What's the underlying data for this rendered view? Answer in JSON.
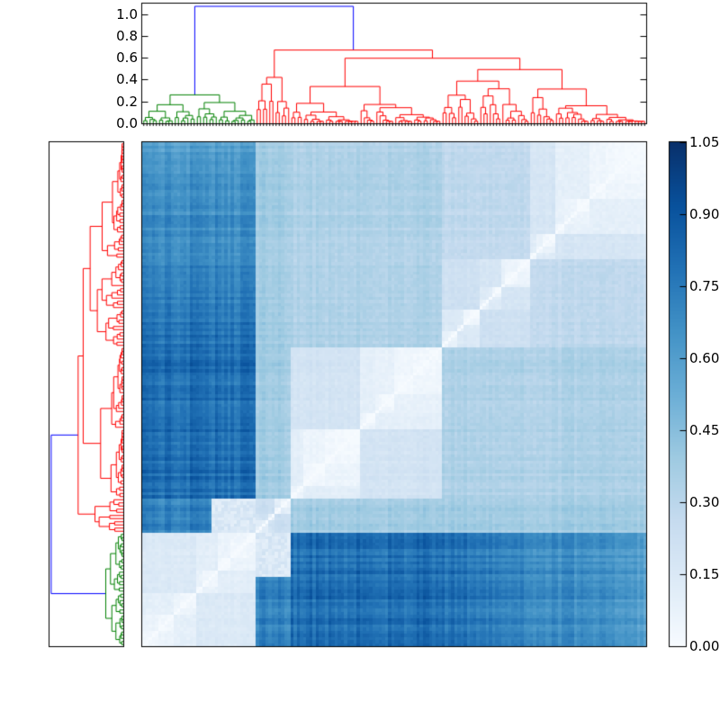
{
  "figure": {
    "background_color": "#ffffff",
    "title": ""
  },
  "chart_data": {
    "type": "heatmap",
    "subtype": "hierarchically clustered distance matrix with top and left dendrograms and colorbar",
    "title": "",
    "xlabel": "",
    "ylabel": "",
    "grid": false,
    "colormap": {
      "name": "Blues",
      "anchors": [
        "#f7fbff",
        "#deebf7",
        "#c6dbef",
        "#9ecae1",
        "#6baed6",
        "#4292c6",
        "#2171b5",
        "#08519c",
        "#08306b"
      ]
    },
    "colorbar": {
      "position": "right",
      "vmin": 0.0,
      "vmax": 1.05,
      "tick_labels": [
        "1.05",
        "0.90",
        "0.75",
        "0.60",
        "0.45",
        "0.30",
        "0.15",
        "0.00"
      ],
      "tick_values": [
        1.05,
        0.9,
        0.75,
        0.6,
        0.45,
        0.3,
        0.15,
        0.0
      ]
    },
    "top_dendrogram_axis": {
      "tick_labels": [
        "1.0",
        "0.8",
        "0.6",
        "0.4",
        "0.2",
        "0.0"
      ],
      "tick_values": [
        1.0,
        0.8,
        0.6,
        0.4,
        0.2,
        0.0
      ],
      "axis_max": 1.095
    },
    "dendrogram": {
      "n_leaves": 160,
      "root_height": 1.07,
      "root_link_color": "#0000ff",
      "clusters": [
        {
          "name": "green",
          "link_color": "#008000",
          "n_leaves": 36,
          "root_height": 0.26,
          "sub_heights": [
            0.17,
            0.19
          ],
          "columns": "left",
          "rows": "bottom"
        },
        {
          "name": "red",
          "link_color": "#ff0000",
          "n_leaves": 124,
          "root_height": 0.67,
          "sub_heights": [
            0.42,
            0.595
          ],
          "columns": "right",
          "rows": "top"
        }
      ],
      "row_order": "reverse_of_column_order"
    },
    "matrix": {
      "diagonal_value": 0.0,
      "between_cluster_value": 0.78,
      "within_cluster_scale": 0.57,
      "stripe_strength": 0.14,
      "noise": 0.02,
      "bridge_patch": {
        "value": 0.15,
        "red_leaves": [
          36,
          46
        ],
        "green_leaves": [
          22,
          35
        ]
      },
      "seed": 20
    }
  }
}
